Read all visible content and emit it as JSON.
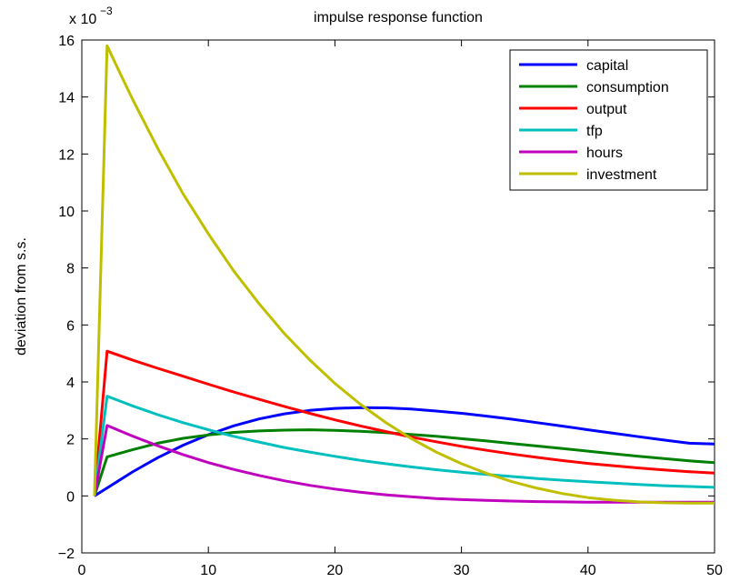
{
  "chart_data": {
    "type": "line",
    "title": "impulse response function",
    "xlabel": "",
    "ylabel": "deviation from s.s.",
    "y_exponent_label": "x 10",
    "y_exponent_power": "−3",
    "xlim": [
      0,
      50
    ],
    "ylim": [
      -2,
      16
    ],
    "xticks": [
      0,
      10,
      20,
      30,
      40,
      50
    ],
    "yticks": [
      -2,
      0,
      2,
      4,
      6,
      8,
      10,
      12,
      14,
      16
    ],
    "xtick_labels": [
      "0",
      "10",
      "20",
      "30",
      "40",
      "50"
    ],
    "ytick_labels": [
      "−2",
      "0",
      "2",
      "4",
      "6",
      "8",
      "10",
      "12",
      "14",
      "16"
    ],
    "grid": false,
    "legend_position": "top-right",
    "series": [
      {
        "name": "capital",
        "color": "#0000ff",
        "x": [
          1,
          2,
          4,
          6,
          8,
          10,
          12,
          14,
          16,
          18,
          20,
          22,
          24,
          26,
          28,
          30,
          32,
          34,
          36,
          38,
          40,
          42,
          44,
          46,
          48,
          50
        ],
        "y": [
          0,
          0.28,
          0.84,
          1.34,
          1.78,
          2.15,
          2.46,
          2.7,
          2.88,
          3.0,
          3.07,
          3.1,
          3.09,
          3.05,
          2.98,
          2.9,
          2.8,
          2.69,
          2.57,
          2.45,
          2.32,
          2.2,
          2.08,
          1.96,
          1.85,
          1.82
        ]
      },
      {
        "name": "consumption",
        "color": "#008000",
        "x": [
          1,
          2,
          4,
          6,
          8,
          10,
          12,
          14,
          16,
          18,
          20,
          22,
          24,
          26,
          28,
          30,
          32,
          34,
          36,
          38,
          40,
          42,
          44,
          46,
          48,
          50
        ],
        "y": [
          0,
          1.37,
          1.62,
          1.85,
          2.02,
          2.14,
          2.23,
          2.28,
          2.31,
          2.32,
          2.3,
          2.27,
          2.22,
          2.16,
          2.09,
          2.01,
          1.93,
          1.84,
          1.75,
          1.66,
          1.57,
          1.48,
          1.39,
          1.31,
          1.23,
          1.17
        ]
      },
      {
        "name": "output",
        "color": "#ff0000",
        "x": [
          1,
          2,
          4,
          6,
          8,
          10,
          12,
          14,
          16,
          18,
          20,
          22,
          24,
          26,
          28,
          30,
          32,
          34,
          36,
          38,
          40,
          42,
          44,
          46,
          48,
          50
        ],
        "y": [
          0,
          5.08,
          4.77,
          4.48,
          4.2,
          3.92,
          3.65,
          3.39,
          3.14,
          2.9,
          2.67,
          2.46,
          2.26,
          2.07,
          1.9,
          1.74,
          1.6,
          1.47,
          1.35,
          1.24,
          1.14,
          1.06,
          0.98,
          0.91,
          0.85,
          0.8
        ]
      },
      {
        "name": "tfp",
        "color": "#00bfbf",
        "x": [
          1,
          2,
          4,
          6,
          8,
          10,
          12,
          14,
          16,
          18,
          20,
          22,
          24,
          26,
          28,
          30,
          32,
          34,
          36,
          38,
          40,
          42,
          44,
          46,
          48,
          50
        ],
        "y": [
          0,
          3.5,
          3.16,
          2.85,
          2.57,
          2.32,
          2.09,
          1.89,
          1.7,
          1.54,
          1.39,
          1.25,
          1.13,
          1.02,
          0.92,
          0.83,
          0.75,
          0.68,
          0.61,
          0.55,
          0.5,
          0.45,
          0.4,
          0.36,
          0.33,
          0.3
        ]
      },
      {
        "name": "hours",
        "color": "#bf00bf",
        "x": [
          1,
          2,
          4,
          6,
          8,
          10,
          12,
          14,
          16,
          18,
          20,
          22,
          24,
          26,
          28,
          30,
          32,
          34,
          36,
          38,
          40,
          42,
          44,
          46,
          48,
          50
        ],
        "y": [
          0,
          2.47,
          2.1,
          1.76,
          1.45,
          1.17,
          0.93,
          0.72,
          0.53,
          0.37,
          0.24,
          0.13,
          0.04,
          -0.03,
          -0.09,
          -0.13,
          -0.16,
          -0.18,
          -0.2,
          -0.21,
          -0.22,
          -0.22,
          -0.22,
          -0.22,
          -0.22,
          -0.22
        ]
      },
      {
        "name": "investment",
        "color": "#bfbf00",
        "x": [
          1,
          2,
          3,
          4,
          6,
          8,
          10,
          12,
          14,
          16,
          18,
          20,
          22,
          24,
          26,
          28,
          30,
          32,
          34,
          36,
          38,
          40,
          42,
          44,
          46,
          48,
          50
        ],
        "y": [
          0,
          15.8,
          14.85,
          13.93,
          12.2,
          10.6,
          9.2,
          7.9,
          6.75,
          5.7,
          4.78,
          3.95,
          3.22,
          2.58,
          2.02,
          1.54,
          1.13,
          0.79,
          0.5,
          0.27,
          0.08,
          -0.06,
          -0.15,
          -0.21,
          -0.24,
          -0.25,
          -0.25
        ]
      }
    ]
  }
}
